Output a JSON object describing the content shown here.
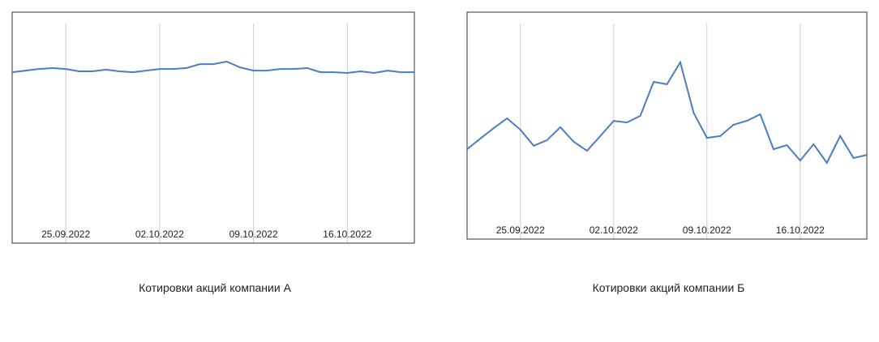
{
  "chart_data": [
    {
      "type": "line",
      "title": "Котировки акций компании А",
      "x": [
        "21.09.2022",
        "22.09.2022",
        "23.09.2022",
        "24.09.2022",
        "25.09.2022",
        "26.09.2022",
        "27.09.2022",
        "28.09.2022",
        "29.09.2022",
        "30.09.2022",
        "01.10.2022",
        "02.10.2022",
        "03.10.2022",
        "04.10.2022",
        "05.10.2022",
        "06.10.2022",
        "07.10.2022",
        "08.10.2022",
        "09.10.2022",
        "10.10.2022",
        "11.10.2022",
        "12.10.2022",
        "13.10.2022",
        "14.10.2022",
        "15.10.2022",
        "16.10.2022",
        "17.10.2022",
        "18.10.2022",
        "19.10.2022",
        "20.10.2022",
        "21.10.2022"
      ],
      "xticks": [
        "25.09.2022",
        "02.10.2022",
        "09.10.2022",
        "16.10.2022"
      ],
      "series": [
        {
          "color": "#4a7ebf",
          "values": [
            74.0,
            74.7,
            75.4,
            75.8,
            75.4,
            74.4,
            74.4,
            75.1,
            74.4,
            74.0,
            74.7,
            75.4,
            75.4,
            75.8,
            77.5,
            77.5,
            78.6,
            76.1,
            74.7,
            74.7,
            75.4,
            75.4,
            75.8,
            74.0,
            74.0,
            73.7,
            74.4,
            73.7,
            74.7,
            74.0,
            74.0
          ]
        }
      ],
      "ylim": [
        0,
        100
      ],
      "grid": true
    },
    {
      "type": "line",
      "title": "Котировки акций компании Б",
      "x": [
        "21.09.2022",
        "22.09.2022",
        "23.09.2022",
        "24.09.2022",
        "25.09.2022",
        "26.09.2022",
        "27.09.2022",
        "28.09.2022",
        "29.09.2022",
        "30.09.2022",
        "01.10.2022",
        "02.10.2022",
        "03.10.2022",
        "04.10.2022",
        "05.10.2022",
        "06.10.2022",
        "07.10.2022",
        "08.10.2022",
        "09.10.2022",
        "10.10.2022",
        "11.10.2022",
        "12.10.2022",
        "13.10.2022",
        "14.10.2022",
        "15.10.2022",
        "16.10.2022",
        "17.10.2022",
        "18.10.2022",
        "19.10.2022",
        "20.10.2022",
        "21.10.2022"
      ],
      "xticks": [
        "25.09.2022",
        "02.10.2022",
        "09.10.2022",
        "16.10.2022"
      ],
      "series": [
        {
          "color": "#4a7ebf",
          "values": [
            39.6,
            44.3,
            48.9,
            53.2,
            48.2,
            41.1,
            43.6,
            49.3,
            42.9,
            38.9,
            45.4,
            52.1,
            51.4,
            54.3,
            69.3,
            68.2,
            77.9,
            55.7,
            44.6,
            45.4,
            50.4,
            52.1,
            55.0,
            39.6,
            41.4,
            34.6,
            41.8,
            33.6,
            45.4,
            35.7,
            37.1
          ]
        }
      ],
      "ylim": [
        0,
        100
      ],
      "grid": true
    }
  ]
}
